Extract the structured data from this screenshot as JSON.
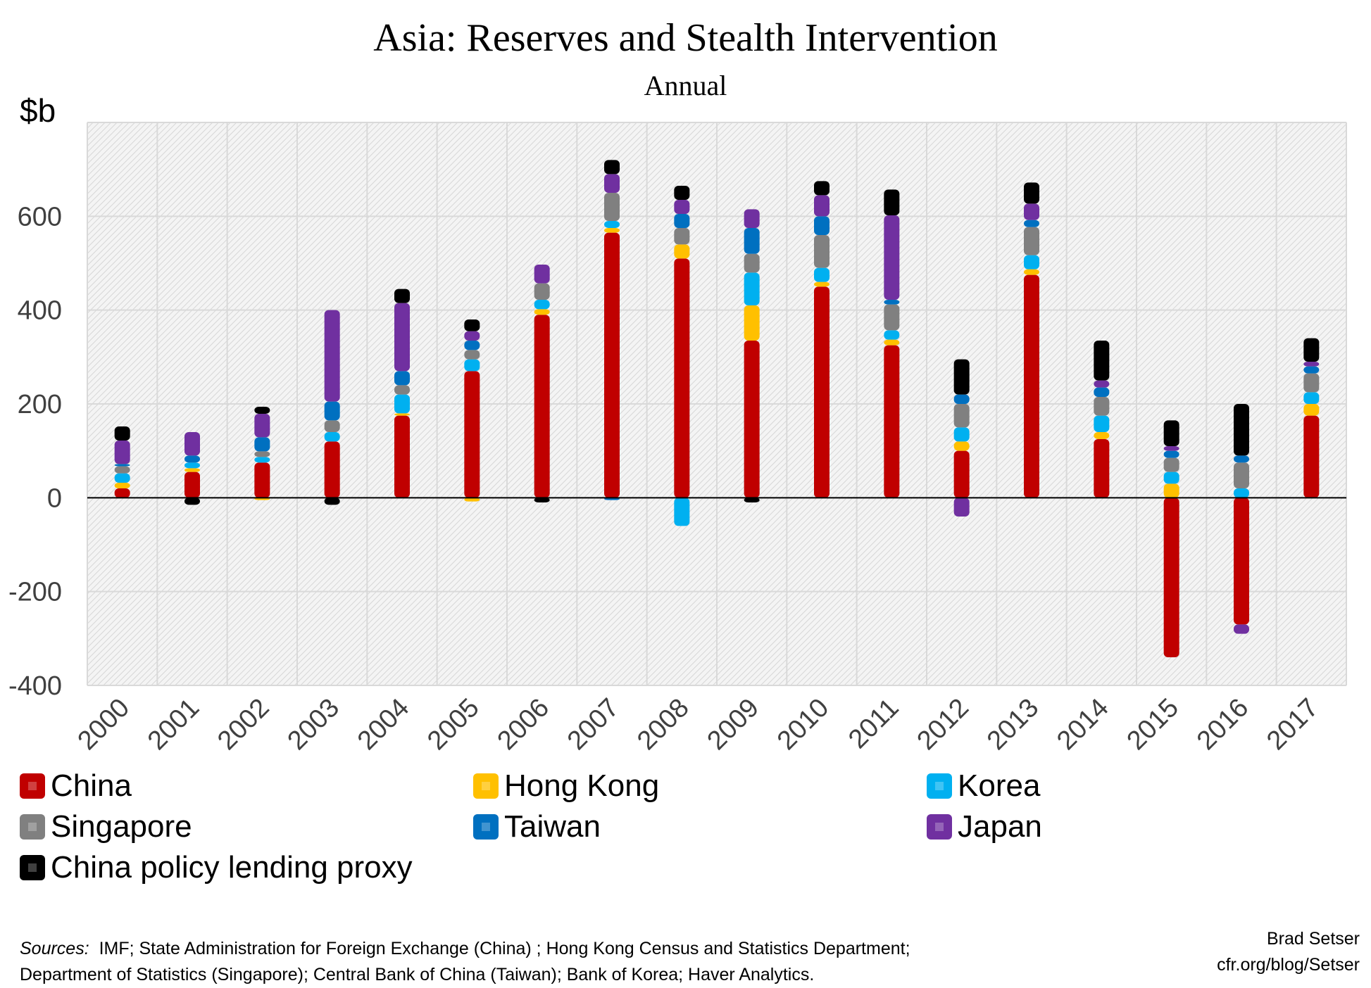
{
  "header": {
    "title": "Asia: Reserves and Stealth Intervention",
    "subtitle": "Annual",
    "unit_label": "$b"
  },
  "footer": {
    "sources_label": "Sources:",
    "sources_line1": "IMF; State Administration for Foreign Exchange (China) ; Hong Kong Census and Statistics Department;",
    "sources_line2": "Department of Statistics (Singapore); Central Bank of China (Taiwan); Bank of Korea; Haver Analytics.",
    "author": "Brad Setser",
    "site": "cfr.org/blog/Setser"
  },
  "chart_data": {
    "type": "bar",
    "stacked": true,
    "title": "Asia: Reserves and Stealth Intervention",
    "subtitle": "Annual",
    "ylabel": "$b",
    "xlabel": "",
    "ylim": [
      -400,
      800
    ],
    "yticks": [
      -400,
      -200,
      0,
      200,
      400,
      600
    ],
    "grid": true,
    "legend_position": "bottom",
    "categories": [
      "2000",
      "2001",
      "2002",
      "2003",
      "2004",
      "2005",
      "2006",
      "2007",
      "2008",
      "2009",
      "2010",
      "2011",
      "2012",
      "2013",
      "2014",
      "2015",
      "2016",
      "2017"
    ],
    "series": [
      {
        "name": "China",
        "color": "#c00000",
        "values": [
          20,
          55,
          75,
          120,
          175,
          270,
          390,
          565,
          510,
          335,
          450,
          325,
          100,
          475,
          125,
          -340,
          -270,
          175
        ]
      },
      {
        "name": "Hong Kong",
        "color": "#ffc000",
        "values": [
          12,
          8,
          -5,
          0,
          5,
          -8,
          12,
          10,
          30,
          75,
          10,
          12,
          20,
          12,
          15,
          30,
          0,
          25
        ]
      },
      {
        "name": "Korea",
        "color": "#00b0f0",
        "values": [
          20,
          12,
          12,
          20,
          40,
          25,
          20,
          15,
          -60,
          70,
          30,
          20,
          30,
          30,
          35,
          25,
          20,
          25
        ]
      },
      {
        "name": "Singapore",
        "color": "#808080",
        "values": [
          15,
          0,
          12,
          25,
          20,
          20,
          35,
          60,
          35,
          40,
          70,
          55,
          50,
          60,
          40,
          30,
          55,
          40
        ]
      },
      {
        "name": "Taiwan",
        "color": "#0070c0",
        "values": [
          5,
          15,
          30,
          40,
          30,
          20,
          0,
          -5,
          30,
          55,
          40,
          10,
          20,
          15,
          20,
          15,
          15,
          15
        ]
      },
      {
        "name": "Japan",
        "color": "#7030a0",
        "values": [
          50,
          50,
          50,
          195,
          145,
          20,
          40,
          40,
          30,
          40,
          45,
          180,
          -40,
          35,
          15,
          10,
          -20,
          10
        ]
      },
      {
        "name": "China policy lending proxy",
        "color": "#000000",
        "values": [
          30,
          -15,
          15,
          -15,
          30,
          25,
          -10,
          30,
          30,
          -10,
          30,
          55,
          75,
          45,
          85,
          55,
          110,
          50
        ]
      }
    ]
  }
}
